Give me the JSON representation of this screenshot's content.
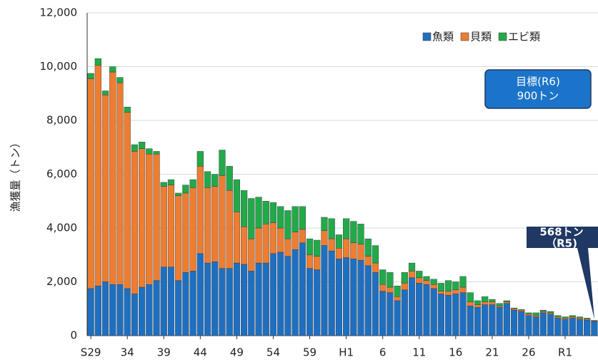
{
  "chart_data": {
    "type": "bar",
    "stacked": true,
    "y_label": "漁獲量（トン）",
    "categories": [
      "S29",
      null,
      null,
      null,
      null,
      "34",
      null,
      null,
      null,
      null,
      "39",
      null,
      null,
      null,
      null,
      "44",
      null,
      null,
      null,
      null,
      "49",
      null,
      null,
      null,
      null,
      "54",
      null,
      null,
      null,
      null,
      "59",
      null,
      null,
      null,
      null,
      "H1",
      null,
      null,
      null,
      null,
      "6",
      null,
      null,
      null,
      null,
      "11",
      null,
      null,
      null,
      null,
      "16",
      null,
      null,
      null,
      null,
      "21",
      null,
      null,
      null,
      null,
      "26",
      null,
      null,
      null,
      null,
      "R1",
      null,
      null,
      null,
      null
    ],
    "series": [
      {
        "name": "魚類",
        "color": "#1f6fc0",
        "values": [
          1750,
          1850,
          2000,
          1900,
          1900,
          1750,
          1550,
          1800,
          1900,
          2050,
          2550,
          2550,
          2050,
          2350,
          2400,
          3050,
          2700,
          2750,
          2500,
          2500,
          2700,
          2650,
          2400,
          2700,
          2700,
          3050,
          3100,
          2950,
          3200,
          3450,
          2500,
          2450,
          3350,
          3150,
          2850,
          2900,
          2850,
          2800,
          2600,
          2350,
          1650,
          1600,
          1300,
          1700,
          2150,
          1950,
          1900,
          1750,
          1550,
          1500,
          1550,
          1600,
          1100,
          1050,
          1150,
          1150,
          1050,
          1200,
          950,
          900,
          750,
          700,
          850,
          800,
          650,
          600,
          650,
          600,
          580,
          530
        ]
      },
      {
        "name": "貝類",
        "color": "#ed7d31",
        "values": [
          7800,
          8200,
          6950,
          7900,
          7500,
          6550,
          5300,
          5150,
          4850,
          4700,
          3000,
          3050,
          3150,
          2950,
          3100,
          3250,
          2800,
          2800,
          3450,
          2900,
          1900,
          1400,
          1200,
          1300,
          1450,
          1150,
          900,
          650,
          650,
          500,
          500,
          500,
          550,
          450,
          400,
          700,
          600,
          600,
          350,
          350,
          250,
          200,
          150,
          250,
          250,
          200,
          150,
          150,
          100,
          150,
          150,
          200,
          150,
          100,
          100,
          100,
          50,
          50,
          50,
          50,
          50,
          50,
          50,
          50,
          50,
          50,
          50,
          50,
          40,
          25
        ]
      },
      {
        "name": "エビ類",
        "color": "#22a94a",
        "values": [
          200,
          250,
          150,
          200,
          200,
          200,
          250,
          250,
          200,
          100,
          150,
          200,
          100,
          300,
          300,
          550,
          600,
          450,
          950,
          900,
          1200,
          1350,
          1500,
          1150,
          850,
          750,
          800,
          1050,
          950,
          850,
          600,
          600,
          500,
          750,
          500,
          750,
          800,
          750,
          650,
          650,
          550,
          550,
          400,
          400,
          300,
          250,
          150,
          200,
          300,
          400,
          300,
          400,
          350,
          150,
          200,
          100,
          100,
          50,
          30,
          20,
          50,
          100,
          50,
          50,
          50,
          50,
          50,
          50,
          30,
          13
        ]
      }
    ],
    "ylim": [
      0,
      12000
    ],
    "yticks": [
      0,
      {
        "value": 2000,
        "label": "2,000"
      },
      {
        "value": 4000,
        "label": "4,000"
      },
      {
        "value": 6000,
        "label": "6,000"
      },
      {
        "value": 8000,
        "label": "8,000"
      },
      {
        "value": 10000,
        "label": "10,000"
      },
      {
        "value": 12000,
        "label": "12,000"
      }
    ],
    "grid": true,
    "legend": "upper right",
    "annotations": [
      {
        "text": "目標(R6)"
      },
      {
        "text": "900トン"
      },
      {
        "text": "568トン"
      },
      {
        "text": "（R5)"
      }
    ]
  }
}
